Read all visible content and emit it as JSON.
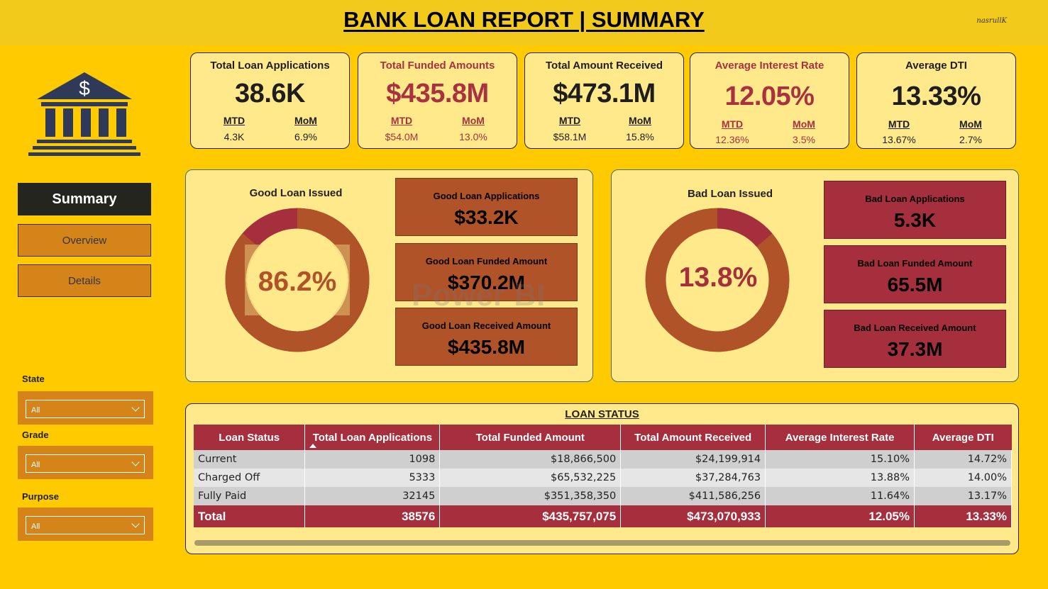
{
  "header": {
    "title": "BANK LOAN REPORT | SUMMARY",
    "signature": "nasrullK"
  },
  "nav": {
    "summary": "Summary",
    "overview": "Overview",
    "details": "Details"
  },
  "filters": [
    {
      "label": "State",
      "value": "All"
    },
    {
      "label": "Grade",
      "value": "All"
    },
    {
      "label": "Purpose",
      "value": "All"
    }
  ],
  "kpis": [
    {
      "title": "Total Loan Applications",
      "value": "38.6K",
      "mtd_label": "MTD",
      "mtd": "4.3K",
      "mom_label": "MoM",
      "mom": "6.9%"
    },
    {
      "title": "Total Funded Amounts",
      "value": "$435.8M",
      "mtd_label": "MTD",
      "mtd": "$54.0M",
      "mom_label": "MoM",
      "mom": "13.0%"
    },
    {
      "title": "Total Amount Received",
      "value": "$473.1M",
      "mtd_label": "MTD",
      "mtd": "$58.1M",
      "mom_label": "MoM",
      "mom": "15.8%"
    },
    {
      "title": "Average Interest Rate",
      "value": "12.05%",
      "mtd_label": "MTD",
      "mtd": "12.36%",
      "mom_label": "MoM",
      "mom": "3.5%"
    },
    {
      "title": "Average DTI",
      "value": "13.33%",
      "mtd_label": "MTD",
      "mtd": "13.67%",
      "mom_label": "MoM",
      "mom": "2.7%"
    }
  ],
  "good_loan": {
    "title": "Good Loan Issued",
    "percent": "86.2%",
    "fraction": 0.862,
    "applications_label": "Good Loan Applications",
    "applications": "$33.2K",
    "funded_label": "Good Loan Funded Amount",
    "funded": "$370.2M",
    "received_label": "Good Loan Received Amount",
    "received": "$435.8M"
  },
  "bad_loan": {
    "title": "Bad Loan Issued",
    "percent": "13.8%",
    "fraction": 0.138,
    "applications_label": "Bad Loan Applications",
    "applications": "5.3K",
    "funded_label": "Bad Loan Funded Amount",
    "funded": "65.5M",
    "received_label": "Bad Loan Received Amount",
    "received": "37.3M"
  },
  "watermark": "Power BI",
  "loan_status": {
    "title": "LOAN STATUS",
    "columns": [
      "Loan Status",
      "Total Loan Applications",
      "Total Funded Amount",
      "Total Amount Received",
      "Average Interest Rate",
      "Average DTI"
    ],
    "rows": [
      {
        "status": "Current",
        "applications": "1098",
        "funded": "$18,866,500",
        "received": "$24,199,914",
        "interest": "15.10%",
        "dti": "14.72%"
      },
      {
        "status": "Charged Off",
        "applications": "5333",
        "funded": "$65,532,225",
        "received": "$37,284,763",
        "interest": "13.88%",
        "dti": "14.00%"
      },
      {
        "status": "Fully Paid",
        "applications": "32145",
        "funded": "$351,358,350",
        "received": "$411,586,256",
        "interest": "11.64%",
        "dti": "13.17%"
      }
    ],
    "total": {
      "status": "Total",
      "applications": "38576",
      "funded": "$435,757,075",
      "received": "$473,070,933",
      "interest": "12.05%",
      "dti": "13.33%"
    }
  },
  "colors": {
    "background": "#FFCB00",
    "panel": "#FFE98A",
    "good": "#B05328",
    "bad": "#A52F3D",
    "nav_dark": "#25251F",
    "nav_orange": "#D48419"
  }
}
